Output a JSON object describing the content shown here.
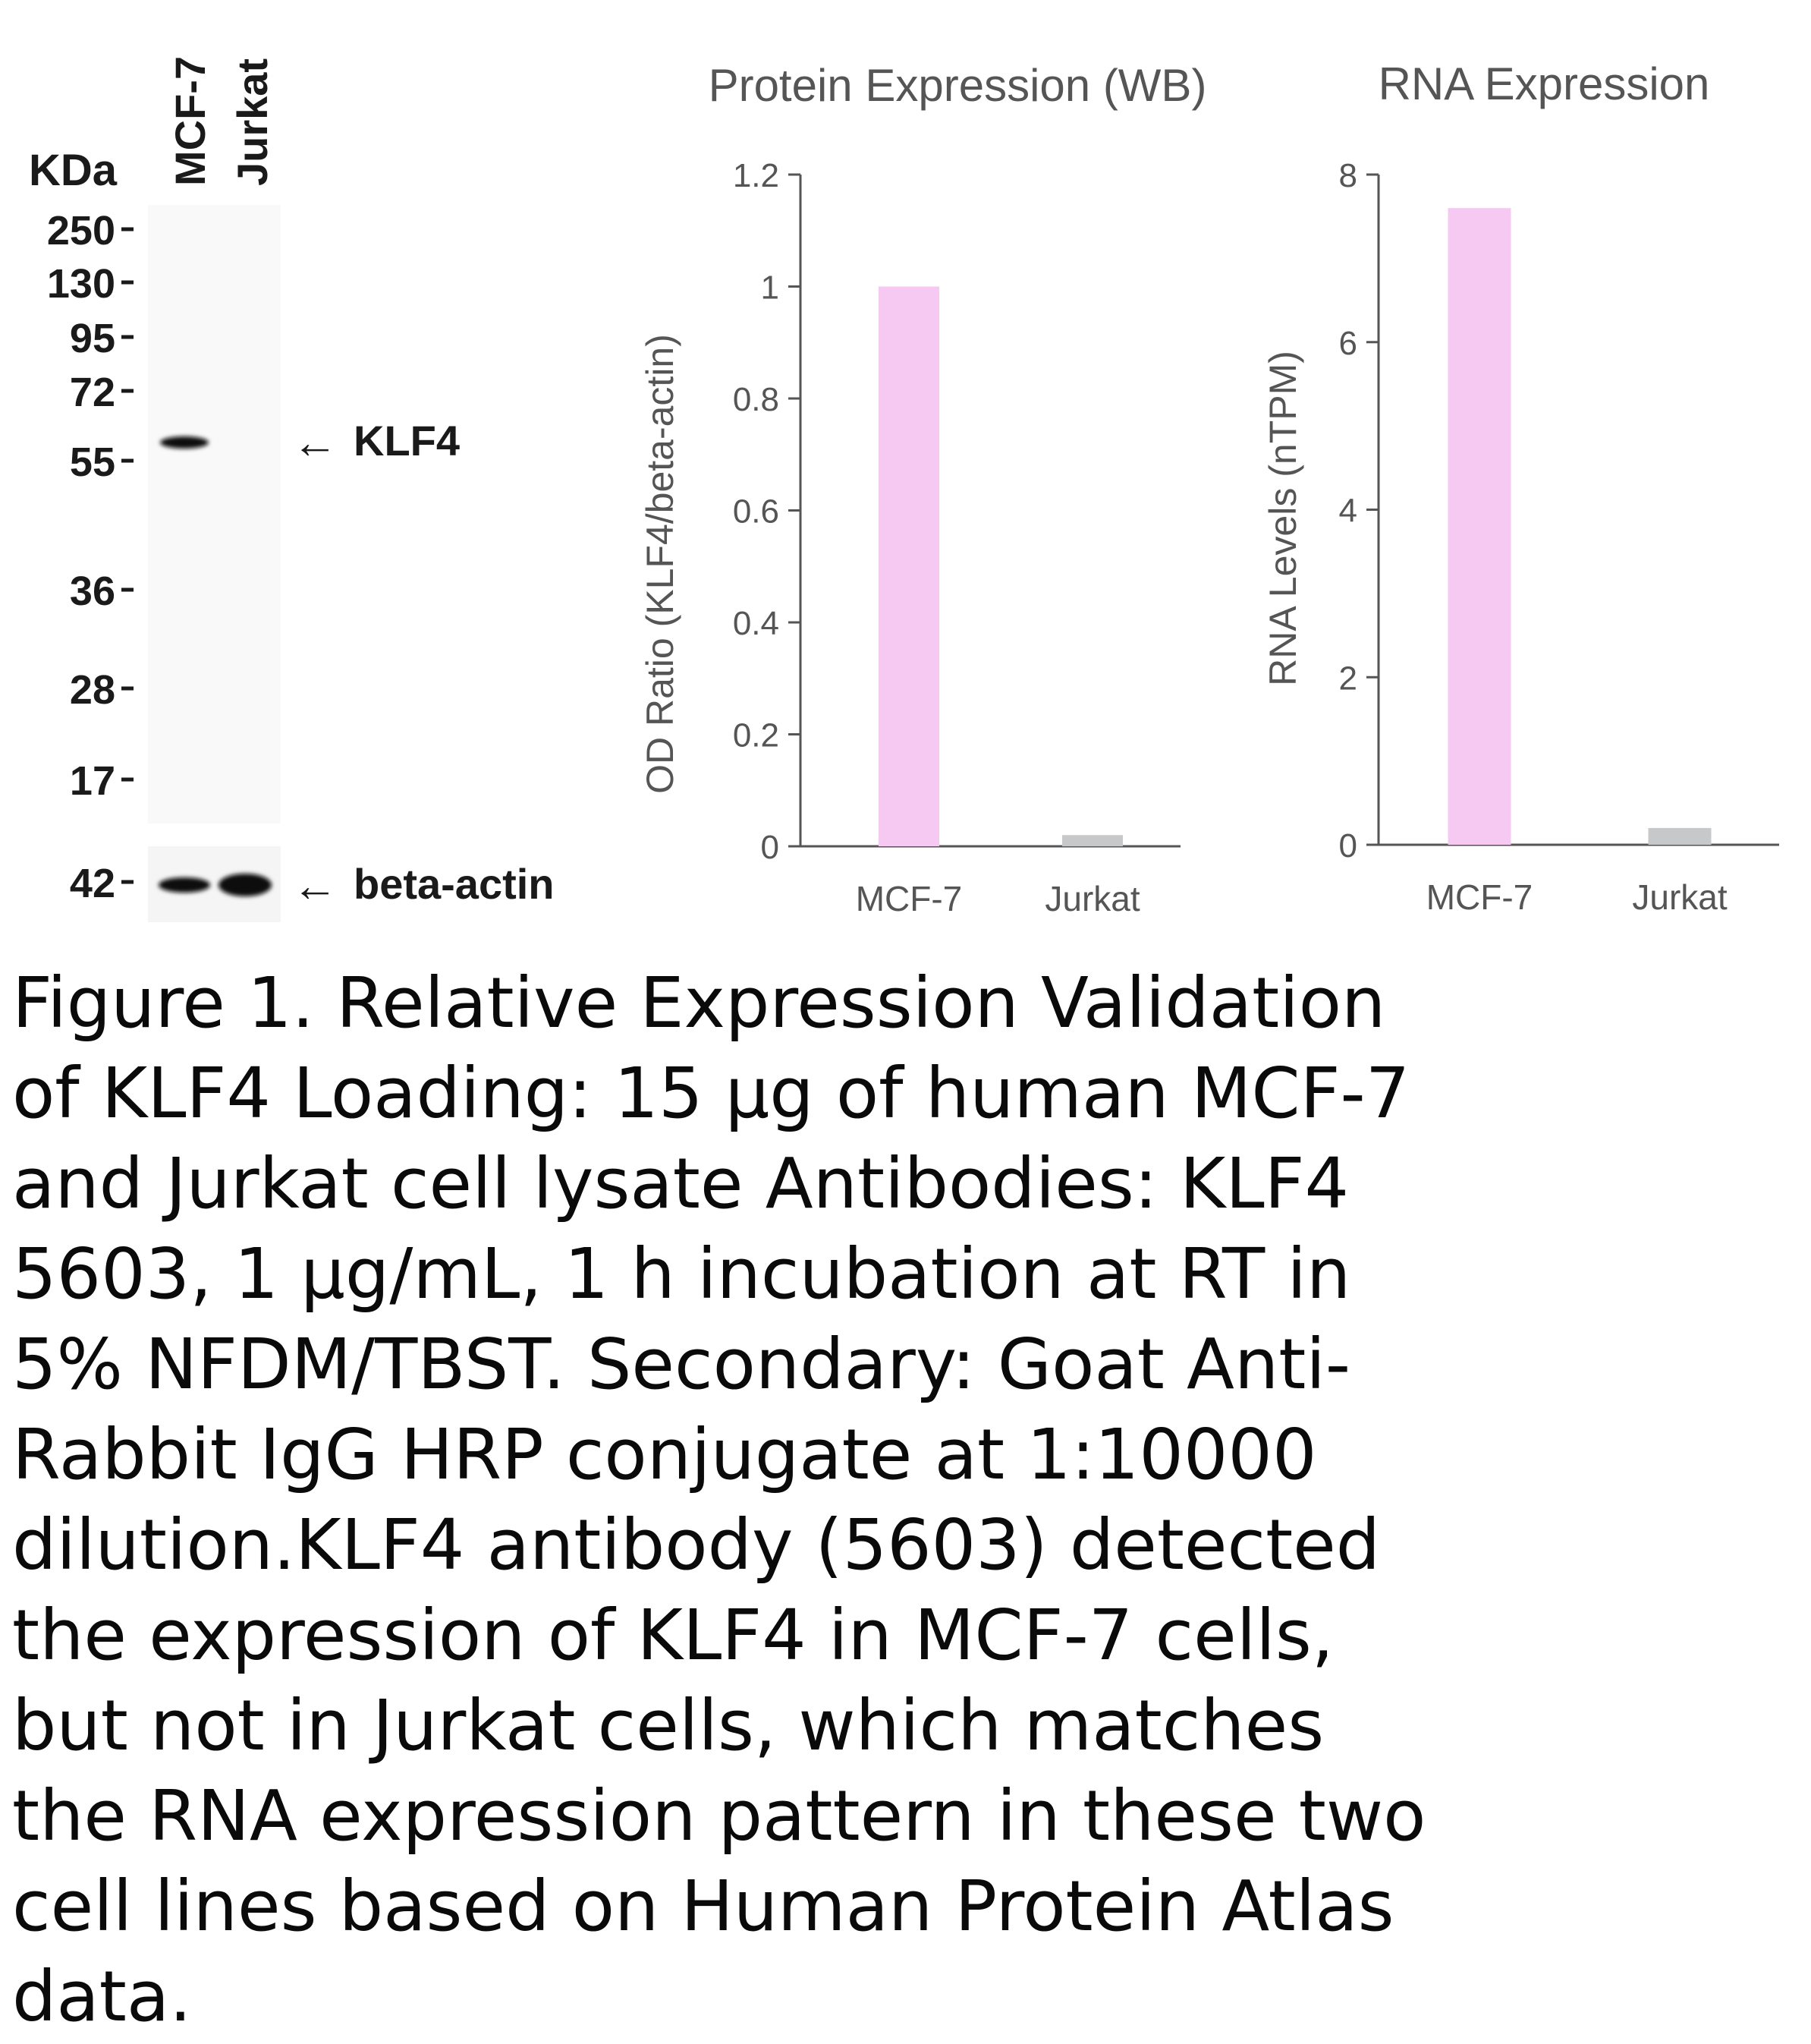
{
  "blot": {
    "unit_label": "KDa",
    "lanes": [
      "MCF-7",
      "Jurkat"
    ],
    "markers": [
      "250",
      "130",
      "95",
      "72",
      "55",
      "36",
      "28",
      "17"
    ],
    "loading_marker": "42",
    "target_label": "KLF4",
    "loading_label": "beta-actin",
    "arrow_glyph": "←"
  },
  "colors": {
    "mcf7_bar": "#f5c9f1",
    "jurkat_bar": "#c6c8c9",
    "axis": "#555555"
  },
  "chart_data": [
    {
      "type": "bar",
      "title": "Protein Expression (WB)",
      "categories": [
        "MCF-7",
        "Jurkat"
      ],
      "values": [
        1.0,
        0.02
      ],
      "xlabel": "",
      "ylabel": "OD Ratio (KLF4/beta-actin)",
      "ylim": [
        0,
        1.2
      ],
      "yticks": [
        "0",
        "0.2",
        "0.4",
        "0.6",
        "0.8",
        "1",
        "1.2"
      ],
      "grid": false,
      "legend": "none"
    },
    {
      "type": "bar",
      "title": "RNA Expression",
      "categories": [
        "MCF-7",
        "Jurkat"
      ],
      "values": [
        7.6,
        0.2
      ],
      "xlabel": "",
      "ylabel": "RNA Levels (nTPM)",
      "ylim": [
        0,
        8
      ],
      "yticks": [
        "0",
        "2",
        "4",
        "6",
        "8"
      ],
      "grid": false,
      "legend": "none"
    }
  ],
  "caption": "Figure 1. Relative Expression Validation\nof KLF4 Loading: 15 µg of human MCF-7\nand Jurkat cell lysate Antibodies: KLF4\n5603, 1 µg/mL, 1 h incubation at RT in\n5% NFDM/TBST. Secondary: Goat Anti-\nRabbit IgG HRP conjugate at 1:10000\ndilution.KLF4 antibody (5603) detected\nthe expression of KLF4 in MCF-7 cells,\nbut not in Jurkat cells, which matches\nthe RNA expression pattern in these two\ncell lines based on Human Protein Atlas\ndata."
}
